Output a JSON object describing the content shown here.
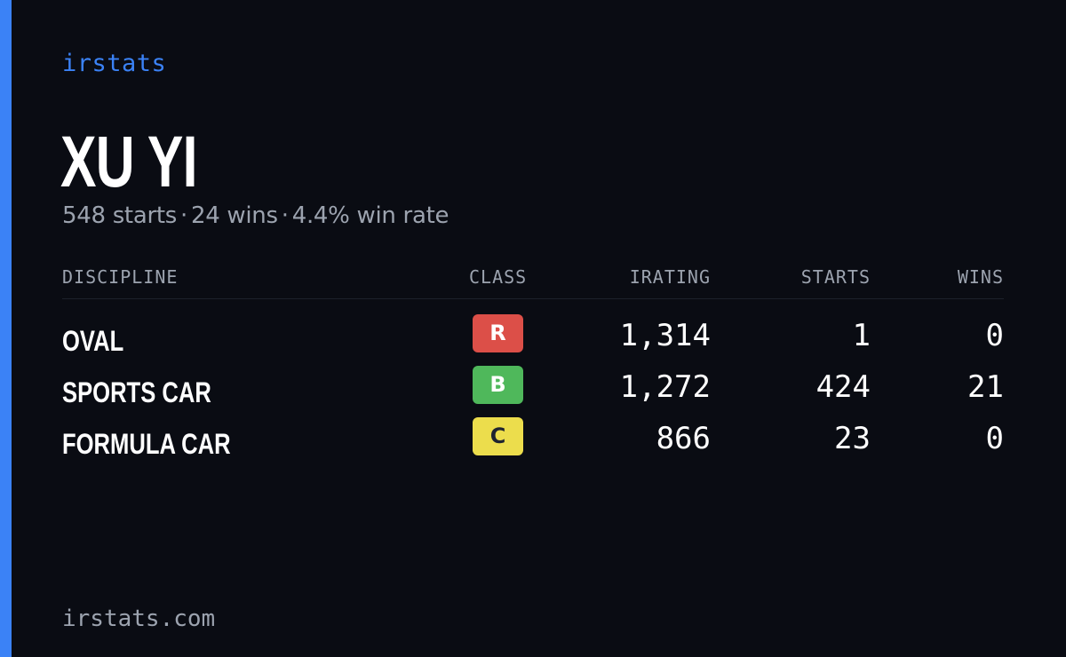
{
  "brand": "irstats",
  "player": {
    "name": "XU YI",
    "starts_text": "548 starts",
    "wins_text": "24 wins",
    "win_rate_text": "4.4% win rate",
    "separator": "·"
  },
  "table": {
    "headers": {
      "discipline": "DISCIPLINE",
      "class": "CLASS",
      "irating": "IRATING",
      "starts": "STARTS",
      "wins": "WINS"
    },
    "rows": [
      {
        "discipline": "OVAL",
        "class": "R",
        "class_color": "#dc4f48",
        "class_text_color": "#ffffff",
        "irating": "1,314",
        "starts": "1",
        "wins": "0"
      },
      {
        "discipline": "SPORTS CAR",
        "class": "B",
        "class_color": "#4fb85b",
        "class_text_color": "#ffffff",
        "irating": "1,272",
        "starts": "424",
        "wins": "21"
      },
      {
        "discipline": "FORMULA CAR",
        "class": "C",
        "class_color": "#ecdd4c",
        "class_text_color": "#1f2430",
        "irating": "866",
        "starts": "23",
        "wins": "0"
      }
    ]
  },
  "footer": "irstats.com",
  "colors": {
    "background": "#0a0c13",
    "accent": "#3b82f6",
    "muted_text": "#9ca3af"
  }
}
